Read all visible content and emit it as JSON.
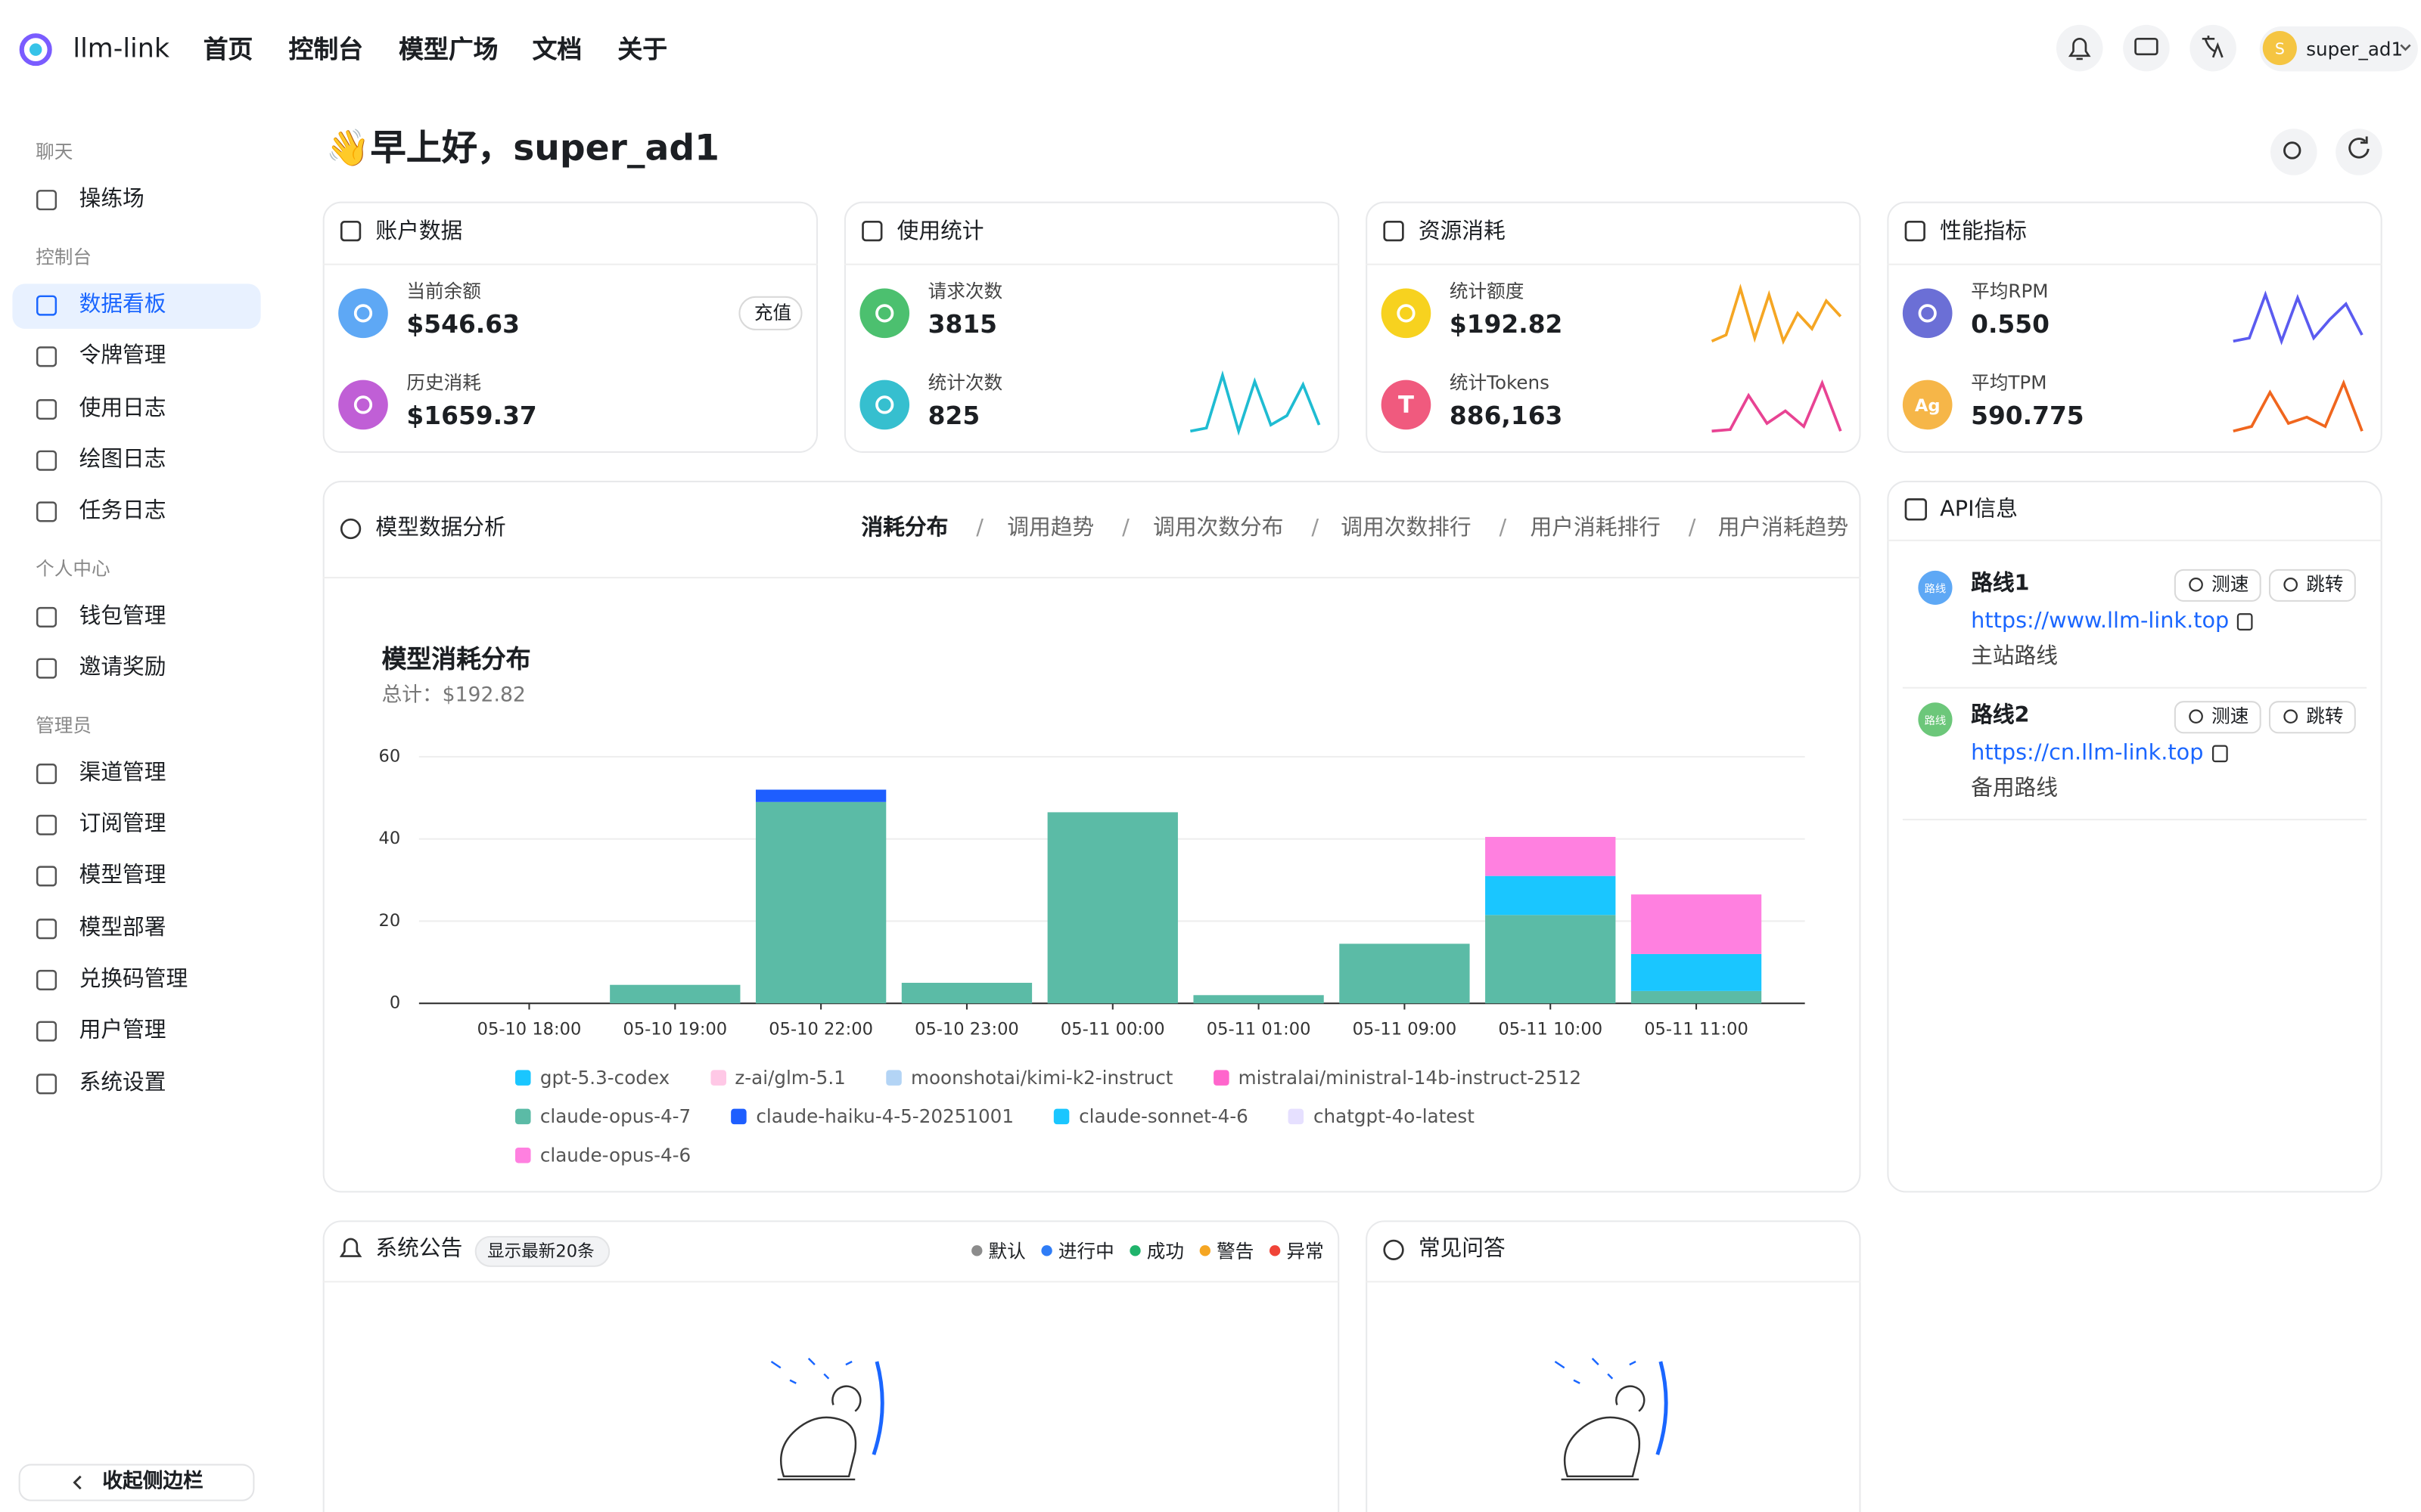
{
  "header": {
    "brand": "llm-link",
    "nav": [
      "首页",
      "控制台",
      "模型广场",
      "文档",
      "关于"
    ],
    "avatar": "S",
    "user": "super_ad1"
  },
  "sidebar": {
    "groups": [
      {
        "title": "聊天",
        "items": [
          "操练场"
        ]
      },
      {
        "title": "控制台",
        "items": [
          "数据看板",
          "令牌管理",
          "使用日志",
          "绘图日志",
          "任务日志"
        ]
      },
      {
        "title": "个人中心",
        "items": [
          "钱包管理",
          "邀请奖励"
        ]
      },
      {
        "title": "管理员",
        "items": [
          "渠道管理",
          "订阅管理",
          "模型管理",
          "模型部署",
          "兑换码管理",
          "用户管理",
          "系统设置"
        ]
      }
    ],
    "collapse": "收起侧边栏"
  },
  "greeting": "👋早上好，super_ad1",
  "cards": [
    {
      "title": "账户数据",
      "action": "充值",
      "stats": [
        {
          "label": "当前余额",
          "value": "$546.63",
          "color": "#5ea8f5"
        },
        {
          "label": "历史消耗",
          "value": "$1659.37",
          "color": "#c05fd6"
        }
      ]
    },
    {
      "title": "使用统计",
      "stats": [
        {
          "label": "请求次数",
          "value": "3815",
          "color": "#4cc06f"
        },
        {
          "label": "统计次数",
          "value": "825",
          "color": "#36bfcf"
        }
      ]
    },
    {
      "title": "资源消耗",
      "stats": [
        {
          "label": "统计额度",
          "value": "$192.82",
          "color": "#f7d21f"
        },
        {
          "label": "统计Tokens",
          "value": "886,163",
          "color": "#f05a7e",
          "icon": "T"
        }
      ]
    },
    {
      "title": "性能指标",
      "stats": [
        {
          "label": "平均RPM",
          "value": "0.550",
          "color": "#6b6fd6"
        },
        {
          "label": "平均TPM",
          "value": "590.775",
          "color": "#f6b648",
          "icon": "Ag"
        }
      ]
    }
  ],
  "analysis": {
    "title": "模型数据分析",
    "tabs": [
      "消耗分布",
      "调用趋势",
      "调用次数分布",
      "调用次数排行",
      "用户消耗排行",
      "用户消耗趋势"
    ],
    "tab_separator": "/"
  },
  "chart_data": {
    "type": "stacked-bar",
    "title": "模型消耗分布",
    "subtitle": "总计：$192.82",
    "categories": [
      "05-10 18:00",
      "05-10 19:00",
      "05-10 22:00",
      "05-10 23:00",
      "05-11 00:00",
      "05-11 01:00",
      "05-11 09:00",
      "05-11 10:00",
      "05-11 11:00"
    ],
    "ylim": [
      0,
      60
    ],
    "yticks": [
      0,
      20,
      40,
      60
    ],
    "grid": true,
    "series": [
      {
        "name": "gpt-5.3-codex",
        "color": "#1ac6ff",
        "values": [
          0,
          0,
          0,
          0,
          0,
          0,
          0,
          0,
          0
        ]
      },
      {
        "name": "z-ai/glm-5.1",
        "color": "#ffc8e6",
        "values": [
          0,
          0,
          0,
          0,
          0,
          0,
          0,
          0,
          0
        ]
      },
      {
        "name": "moonshotai/kimi-k2-instruct",
        "color": "#b3d4f5",
        "values": [
          0,
          0,
          0,
          0,
          0,
          0,
          0,
          0,
          0
        ]
      },
      {
        "name": "mistralai/ministral-14b-instruct-2512",
        "color": "#ff66cc",
        "values": [
          0,
          0,
          0,
          0,
          0,
          0,
          0,
          0,
          0
        ]
      },
      {
        "name": "claude-opus-4-7",
        "color": "#5bbba6",
        "values": [
          0,
          4.5,
          49,
          5,
          46.5,
          2,
          14.5,
          21.5,
          3
        ]
      },
      {
        "name": "claude-haiku-4-5-20251001",
        "color": "#1e5eff",
        "values": [
          0,
          0,
          3,
          0,
          0,
          0,
          0,
          0,
          0
        ]
      },
      {
        "name": "claude-sonnet-4-6",
        "color": "#1ac6ff",
        "values": [
          0,
          0,
          0,
          0,
          0,
          0,
          0,
          9.5,
          9
        ]
      },
      {
        "name": "chatgpt-4o-latest",
        "color": "#e6e0ff",
        "values": [
          0,
          0,
          0,
          0,
          0,
          0,
          0,
          0,
          0
        ]
      },
      {
        "name": "claude-opus-4-6",
        "color": "#ff80e0",
        "values": [
          0,
          0,
          0,
          0,
          0,
          0,
          0,
          9.5,
          14.5
        ]
      }
    ]
  },
  "api": {
    "title": "API信息",
    "routes": [
      {
        "badge": "路线",
        "name": "路线1",
        "url": "https://www.llm-link.top",
        "desc": "主站路线",
        "color": "#5ea8f5",
        "buttons": [
          "测速",
          "跳转"
        ]
      },
      {
        "badge": "路线",
        "name": "路线2",
        "url": "https://cn.llm-link.top",
        "desc": "备用路线",
        "color": "#6cc77a",
        "buttons": [
          "测速",
          "跳转"
        ]
      }
    ]
  },
  "announcements": {
    "title": "系统公告",
    "badge": "显示最新20条",
    "statuses": [
      {
        "label": "默认",
        "color": "#8c8c8c"
      },
      {
        "label": "进行中",
        "color": "#2f7cf6"
      },
      {
        "label": "成功",
        "color": "#1fb36b"
      },
      {
        "label": "警告",
        "color": "#f5a623"
      },
      {
        "label": "异常",
        "color": "#f04438"
      }
    ]
  },
  "faq": {
    "title": "常见问答"
  }
}
